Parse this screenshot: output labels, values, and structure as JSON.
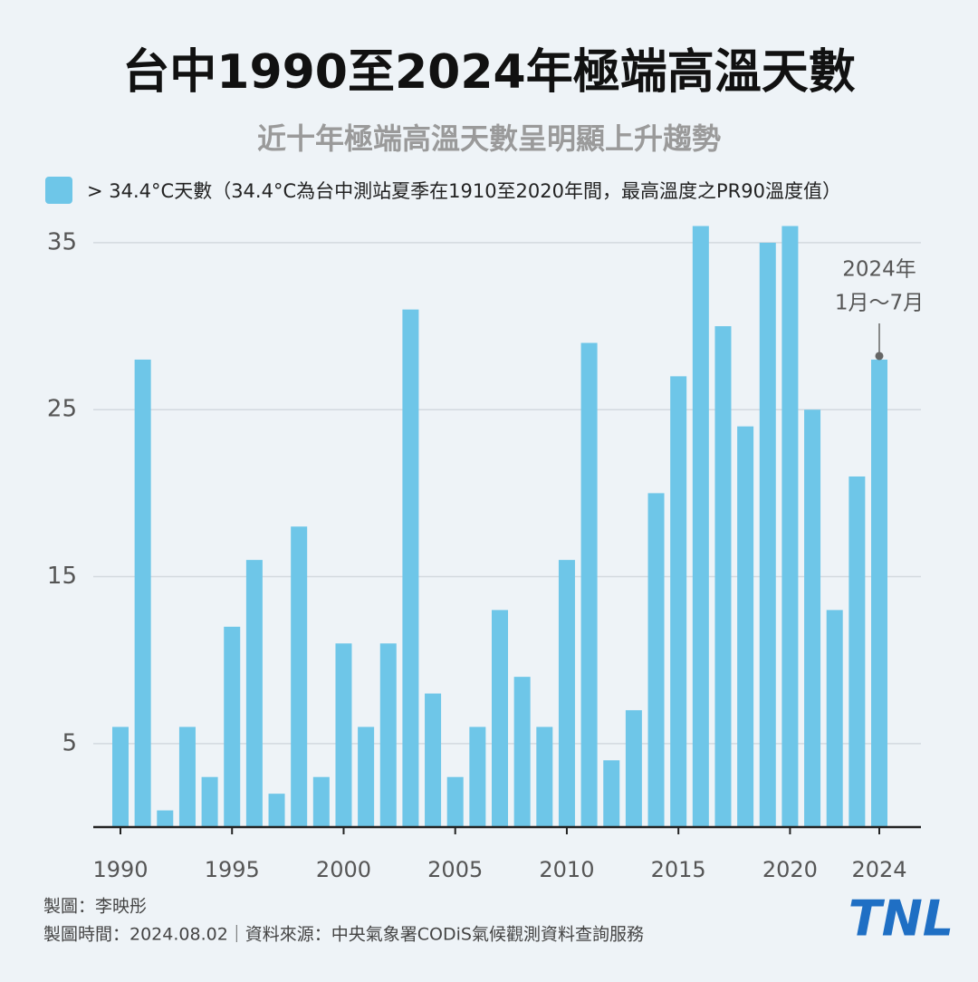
{
  "chart_data": {
    "type": "bar",
    "title": "台中1990至2024年極端高溫天數",
    "subtitle": "近十年極端高溫天數呈明顯上升趨勢",
    "series": [
      {
        "name": "> 34.4°C天數（34.4°C為台中測站夏季在1910至2020年間，最高溫度之PR90溫度值）",
        "color": "#6ec6e8",
        "values": [
          6,
          28,
          1,
          6,
          3,
          12,
          16,
          2,
          18,
          3,
          11,
          6,
          11,
          31,
          8,
          3,
          6,
          13,
          9,
          6,
          16,
          29,
          4,
          7,
          20,
          27,
          36,
          30,
          24,
          35,
          36,
          25,
          13,
          21,
          28
        ]
      }
    ],
    "x": [
      1990,
      1991,
      1992,
      1993,
      1994,
      1995,
      1996,
      1997,
      1998,
      1999,
      2000,
      2001,
      2002,
      2003,
      2004,
      2005,
      2006,
      2007,
      2008,
      2009,
      2010,
      2011,
      2012,
      2013,
      2014,
      2015,
      2016,
      2017,
      2018,
      2019,
      2020,
      2021,
      2022,
      2023,
      2024
    ],
    "xlim": [
      1990,
      2024
    ],
    "xticks": [
      1990,
      1995,
      2000,
      2005,
      2010,
      2015,
      2020,
      2024
    ],
    "ylim": [
      0,
      36
    ],
    "yticks": [
      5,
      15,
      25,
      35
    ],
    "grid": true,
    "annotation": [
      "2024年",
      "1月～7月"
    ],
    "footer": [
      "製圖：李映彤",
      "製圖時間：2024.08.02｜資料來源：中央氣象署CODiS氣候觀測資料查詢服務"
    ],
    "logo": "TNL"
  }
}
